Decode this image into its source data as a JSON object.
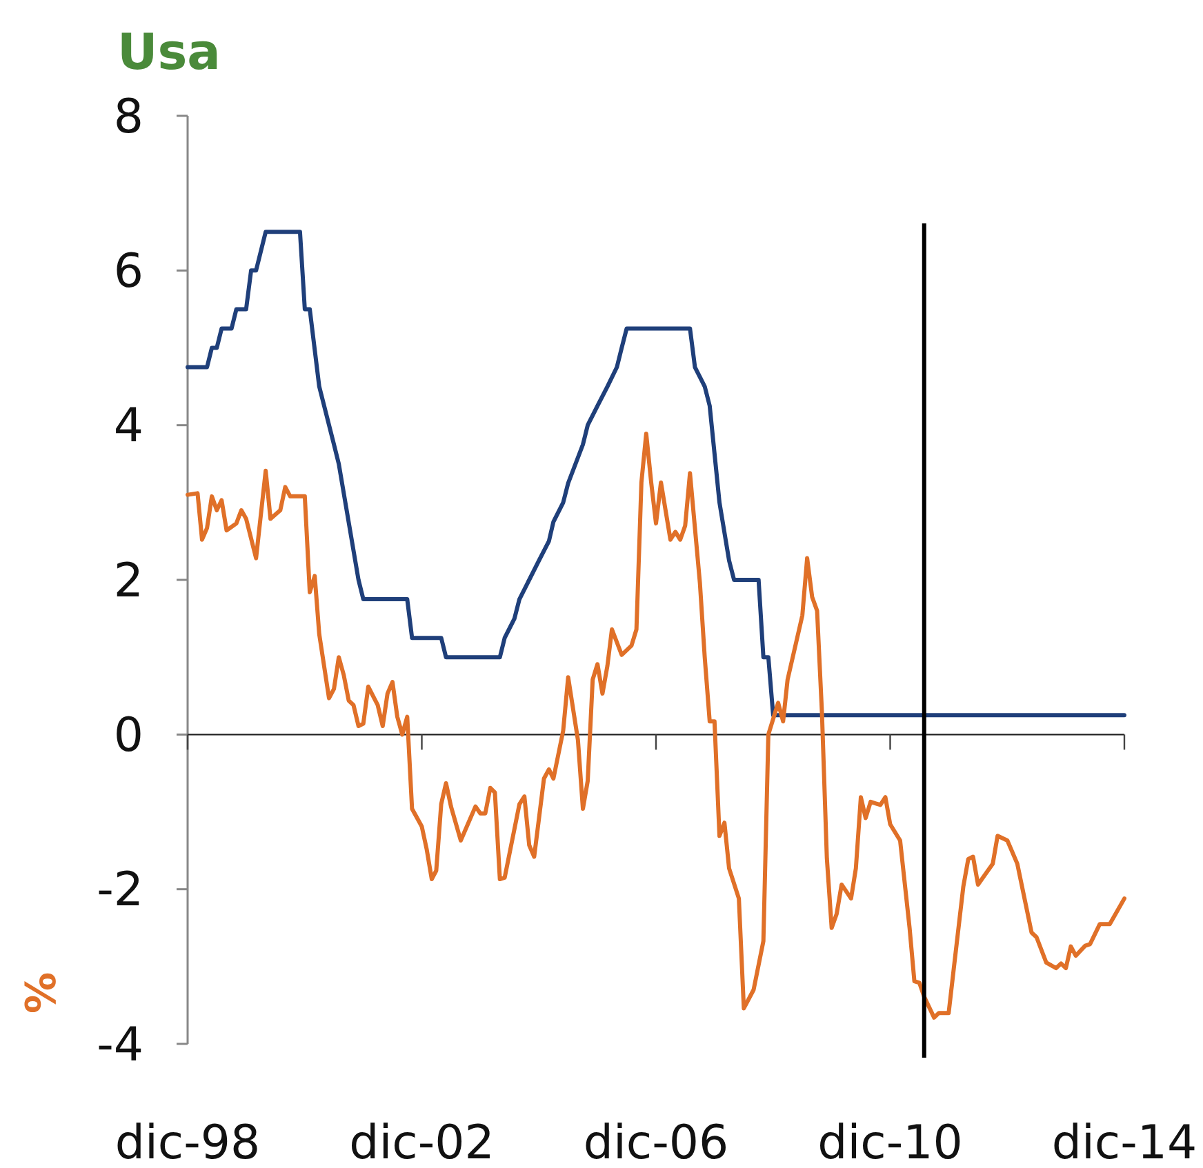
{
  "chart_data": {
    "type": "line",
    "title": "Usa",
    "ylabel": "%",
    "xlim": [
      "1998-12",
      "2014-12"
    ],
    "xticks": [
      {
        "value": "1998-12",
        "label": "dic-98"
      },
      {
        "value": "2002-12",
        "label": "dic-02"
      },
      {
        "value": "2006-12",
        "label": "dic-06"
      },
      {
        "value": "2010-12",
        "label": "dic-10"
      },
      {
        "value": "2014-12",
        "label": "dic-14"
      }
    ],
    "ylim": [
      -4,
      8
    ],
    "yticks": [
      -4,
      -2,
      0,
      2,
      4,
      6,
      8
    ],
    "line_style": "solid",
    "ref_lines": [
      {
        "axis": "x",
        "value": "2011-07",
        "color": "#000000"
      }
    ],
    "series": [
      {
        "color": "#1f3f7a",
        "x": [
          "1998-12",
          "1999-04",
          "1999-05",
          "1999-06",
          "1999-07",
          "1999-09",
          "1999-10",
          "1999-12",
          "2000-01",
          "2000-02",
          "2000-04",
          "2000-11",
          "2000-12",
          "2001-01",
          "2001-03",
          "2001-06",
          "2001-07",
          "2001-11",
          "2001-12",
          "2002-09",
          "2002-10",
          "2003-04",
          "2003-05",
          "2004-04",
          "2004-05",
          "2004-07",
          "2004-08",
          "2004-12",
          "2005-02",
          "2005-03",
          "2005-05",
          "2005-06",
          "2005-09",
          "2005-10",
          "2005-12",
          "2006-02",
          "2006-04",
          "2006-05",
          "2006-06",
          "2007-07",
          "2007-08",
          "2007-10",
          "2007-11",
          "2008-01",
          "2008-03",
          "2008-04",
          "2008-09",
          "2008-10",
          "2008-11",
          "2008-12",
          "2014-12"
        ],
        "values": [
          4.75,
          4.75,
          5.0,
          5.0,
          5.25,
          5.25,
          5.5,
          5.5,
          6.0,
          6.0,
          6.5,
          6.5,
          5.5,
          5.5,
          4.5,
          3.75,
          3.5,
          2.0,
          1.75,
          1.75,
          1.25,
          1.25,
          1.0,
          1.0,
          1.25,
          1.5,
          1.75,
          2.25,
          2.5,
          2.75,
          3.0,
          3.25,
          3.75,
          4.0,
          4.25,
          4.5,
          4.75,
          5.0,
          5.25,
          5.25,
          4.75,
          4.5,
          4.25,
          3.0,
          2.25,
          2.0,
          2.0,
          1.0,
          1.0,
          0.25,
          0.25
        ]
      },
      {
        "color": "#e07028",
        "x": [
          "1998-12",
          "1999-02",
          "1999-03",
          "1999-04",
          "1999-05",
          "1999-06",
          "1999-07",
          "1999-08",
          "1999-10",
          "1999-11",
          "1999-12",
          "2000-02",
          "2000-04",
          "2000-05",
          "2000-07",
          "2000-08",
          "2000-09",
          "2000-12",
          "2001-01",
          "2001-02",
          "2001-03",
          "2001-05",
          "2001-06",
          "2001-07",
          "2001-08",
          "2001-09",
          "2001-10",
          "2001-11",
          "2001-12",
          "2002-01",
          "2002-03",
          "2002-04",
          "2002-05",
          "2002-06",
          "2002-07",
          "2002-08",
          "2002-09",
          "2002-10",
          "2002-12",
          "2003-01",
          "2003-02",
          "2003-03",
          "2003-04",
          "2003-05",
          "2003-06",
          "2003-08",
          "2003-11",
          "2003-12",
          "2004-01",
          "2004-02",
          "2004-03",
          "2004-04",
          "2004-05",
          "2004-08",
          "2004-09",
          "2004-10",
          "2004-11",
          "2005-01",
          "2005-02",
          "2005-03",
          "2005-05",
          "2005-06",
          "2005-08",
          "2005-09",
          "2005-10",
          "2005-11",
          "2005-12",
          "2006-01",
          "2006-02",
          "2006-03",
          "2006-05",
          "2006-07",
          "2006-08",
          "2006-09",
          "2006-10",
          "2006-11",
          "2006-12",
          "2007-01",
          "2007-03",
          "2007-04",
          "2007-05",
          "2007-06",
          "2007-07",
          "2007-09",
          "2007-10",
          "2007-11",
          "2007-12",
          "2008-01",
          "2008-02",
          "2008-03",
          "2008-05",
          "2008-06",
          "2008-08",
          "2008-10",
          "2008-11",
          "2009-01",
          "2009-02",
          "2009-03",
          "2009-06",
          "2009-07",
          "2009-08",
          "2009-09",
          "2009-10",
          "2009-11",
          "2009-12",
          "2010-01",
          "2010-02",
          "2010-04",
          "2010-05",
          "2010-06",
          "2010-07",
          "2010-08",
          "2010-10",
          "2010-11",
          "2010-12",
          "2011-02",
          "2011-04",
          "2011-05",
          "2011-06",
          "2011-07",
          "2011-09",
          "2011-10",
          "2011-12",
          "2012-01",
          "2012-03",
          "2012-04",
          "2012-05",
          "2012-06",
          "2012-09",
          "2012-10",
          "2012-12",
          "2013-02",
          "2013-05",
          "2013-06",
          "2013-08",
          "2013-10",
          "2013-11",
          "2013-12",
          "2014-01",
          "2014-02",
          "2014-04",
          "2014-05",
          "2014-07",
          "2014-09",
          "2014-12"
        ],
        "values": [
          3.1,
          3.12,
          2.52,
          2.67,
          3.08,
          2.9,
          3.03,
          2.64,
          2.73,
          2.9,
          2.79,
          2.28,
          3.41,
          2.79,
          2.9,
          3.2,
          3.08,
          3.08,
          1.84,
          2.05,
          1.3,
          0.47,
          0.59,
          1.0,
          0.77,
          0.44,
          0.38,
          0.11,
          0.14,
          0.62,
          0.38,
          0.11,
          0.53,
          0.68,
          0.23,
          0,
          0.23,
          -0.96,
          -1.19,
          -1.49,
          -1.87,
          -1.76,
          -0.9,
          -0.63,
          -0.93,
          -1.37,
          -0.93,
          -1.02,
          -1.02,
          -0.69,
          -0.75,
          -1.87,
          -1.85,
          -0.9,
          -0.8,
          -1.43,
          -1.58,
          -0.57,
          -0.45,
          -0.57,
          0.05,
          0.74,
          -0.07,
          -0.96,
          -0.6,
          0.71,
          0.91,
          0.53,
          0.89,
          1.36,
          1.03,
          1.15,
          1.36,
          3.26,
          3.89,
          3.26,
          2.73,
          3.26,
          2.52,
          2.62,
          2.52,
          2.7,
          3.38,
          1.96,
          1.0,
          0.17,
          0.17,
          -1.31,
          -1.14,
          -1.73,
          -2.12,
          -3.54,
          -3.3,
          -2.67,
          0,
          0.41,
          0.17,
          0.71,
          1.54,
          2.28,
          1.78,
          1.6,
          0.3,
          -1.6,
          -2.5,
          -2.32,
          -1.94,
          -2.12,
          -1.73,
          -0.81,
          -1.08,
          -0.87,
          -0.91,
          -0.81,
          -1.16,
          -1.37,
          -2.5,
          -3.19,
          -3.21,
          -3.39,
          -3.66,
          -3.6,
          -3.6,
          -3.04,
          -1.97,
          -1.61,
          -1.58,
          -1.94,
          -1.67,
          -1.31,
          -1.37,
          -1.67,
          -2.56,
          -2.62,
          -2.95,
          -3.02,
          -2.96,
          -3.02,
          -2.74,
          -2.86,
          -2.73,
          -2.71,
          -2.45,
          -2.45,
          -2.12
        ]
      }
    ]
  }
}
